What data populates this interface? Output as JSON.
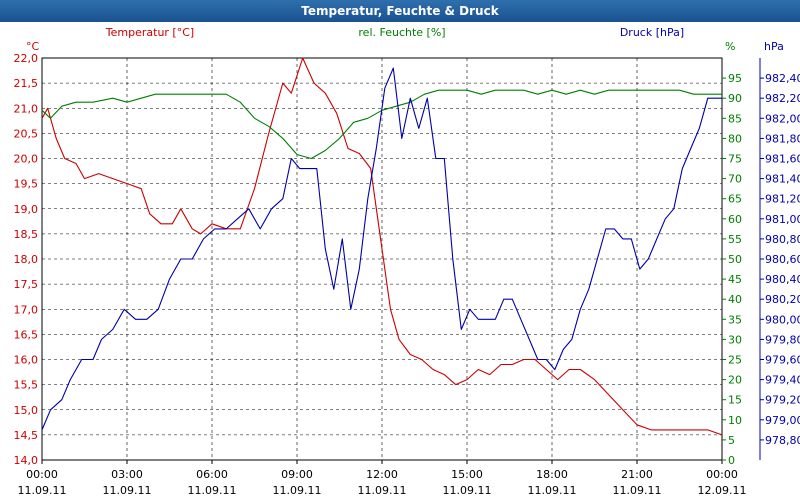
{
  "title": "Temperatur, Feuchte & Druck",
  "chart_data": {
    "type": "line",
    "title": "Temperatur, Feuchte & Druck",
    "x_ticks": [
      {
        "time": "00:00",
        "date": "11.09.11"
      },
      {
        "time": "03:00",
        "date": "11.09.11"
      },
      {
        "time": "06:00",
        "date": "11.09.11"
      },
      {
        "time": "09:00",
        "date": "11.09.11"
      },
      {
        "time": "12:00",
        "date": "11.09.11"
      },
      {
        "time": "15:00",
        "date": "11.09.11"
      },
      {
        "time": "18:00",
        "date": "11.09.11"
      },
      {
        "time": "21:00",
        "date": "11.09.11"
      },
      {
        "time": "00:00",
        "date": "12.09.11"
      }
    ],
    "xlim": [
      0,
      24
    ],
    "axes": {
      "temp": {
        "unit": "°C",
        "min": 14.0,
        "max": 22.0,
        "step": 0.5,
        "ticks": [
          "14,0",
          "14,5",
          "15,0",
          "15,5",
          "16,0",
          "16,5",
          "17,0",
          "17,5",
          "18,0",
          "18,5",
          "19,0",
          "19,5",
          "20,0",
          "20,5",
          "21,0",
          "21,5",
          "22,0"
        ]
      },
      "hum": {
        "unit": "%",
        "min": 0,
        "max": 100,
        "step": 5,
        "ticks": [
          "0",
          "5",
          "10",
          "15",
          "20",
          "25",
          "30",
          "35",
          "40",
          "45",
          "50",
          "55",
          "60",
          "65",
          "70",
          "75",
          "80",
          "85",
          "90",
          "95"
        ]
      },
      "press": {
        "unit": "hPa",
        "min": 978.6,
        "max": 982.6,
        "step": 0.2,
        "ticks": [
          "978,80",
          "979,00",
          "979,20",
          "979,40",
          "979,60",
          "979,80",
          "980,00",
          "980,20",
          "980,40",
          "980,60",
          "980,80",
          "981,00",
          "981,20",
          "981,40",
          "981,60",
          "981,80",
          "982,00",
          "982,20",
          "982,40"
        ]
      }
    },
    "series": [
      {
        "name": "Temperatur [°C]",
        "axis": "temp",
        "color": "#cc0000",
        "points": [
          [
            0,
            20.8
          ],
          [
            0.2,
            21.0
          ],
          [
            0.5,
            20.4
          ],
          [
            0.8,
            20.0
          ],
          [
            1.2,
            19.9
          ],
          [
            1.5,
            19.6
          ],
          [
            2.0,
            19.7
          ],
          [
            2.5,
            19.6
          ],
          [
            3.0,
            19.5
          ],
          [
            3.5,
            19.4
          ],
          [
            3.8,
            18.9
          ],
          [
            4.2,
            18.7
          ],
          [
            4.6,
            18.7
          ],
          [
            4.9,
            19.0
          ],
          [
            5.3,
            18.6
          ],
          [
            5.6,
            18.5
          ],
          [
            6.0,
            18.7
          ],
          [
            6.5,
            18.6
          ],
          [
            7.0,
            18.6
          ],
          [
            7.5,
            19.4
          ],
          [
            8.0,
            20.5
          ],
          [
            8.5,
            21.5
          ],
          [
            8.8,
            21.3
          ],
          [
            9.2,
            22.0
          ],
          [
            9.6,
            21.5
          ],
          [
            10.0,
            21.3
          ],
          [
            10.4,
            20.9
          ],
          [
            10.8,
            20.2
          ],
          [
            11.2,
            20.1
          ],
          [
            11.6,
            19.8
          ],
          [
            12.0,
            18.2
          ],
          [
            12.3,
            17.0
          ],
          [
            12.6,
            16.4
          ],
          [
            13.0,
            16.1
          ],
          [
            13.4,
            16.0
          ],
          [
            13.8,
            15.8
          ],
          [
            14.2,
            15.7
          ],
          [
            14.6,
            15.5
          ],
          [
            15.0,
            15.6
          ],
          [
            15.4,
            15.8
          ],
          [
            15.8,
            15.7
          ],
          [
            16.2,
            15.9
          ],
          [
            16.6,
            15.9
          ],
          [
            17.0,
            16.0
          ],
          [
            17.4,
            16.0
          ],
          [
            17.8,
            15.8
          ],
          [
            18.2,
            15.6
          ],
          [
            18.6,
            15.8
          ],
          [
            19.0,
            15.8
          ],
          [
            19.5,
            15.6
          ],
          [
            20.0,
            15.3
          ],
          [
            20.5,
            15.0
          ],
          [
            21.0,
            14.7
          ],
          [
            21.5,
            14.6
          ],
          [
            22.0,
            14.6
          ],
          [
            22.5,
            14.6
          ],
          [
            23.0,
            14.6
          ],
          [
            23.5,
            14.6
          ],
          [
            24.0,
            14.5
          ]
        ]
      },
      {
        "name": "rel. Feuchte [%]",
        "axis": "hum",
        "color": "#008000",
        "points": [
          [
            0,
            87
          ],
          [
            0.3,
            85
          ],
          [
            0.7,
            88
          ],
          [
            1.2,
            89
          ],
          [
            1.8,
            89
          ],
          [
            2.5,
            90
          ],
          [
            3.0,
            89
          ],
          [
            3.5,
            90
          ],
          [
            4.0,
            91
          ],
          [
            4.5,
            91
          ],
          [
            5.0,
            91
          ],
          [
            5.5,
            91
          ],
          [
            6.0,
            91
          ],
          [
            6.5,
            91
          ],
          [
            7.0,
            89
          ],
          [
            7.5,
            85
          ],
          [
            8.0,
            83
          ],
          [
            8.5,
            80
          ],
          [
            9.0,
            76
          ],
          [
            9.5,
            75
          ],
          [
            10.0,
            77
          ],
          [
            10.5,
            80
          ],
          [
            11.0,
            84
          ],
          [
            11.5,
            85
          ],
          [
            12.0,
            87
          ],
          [
            12.5,
            88
          ],
          [
            13.0,
            89
          ],
          [
            13.5,
            91
          ],
          [
            14.0,
            92
          ],
          [
            14.5,
            92
          ],
          [
            15.0,
            92
          ],
          [
            15.5,
            91
          ],
          [
            16.0,
            92
          ],
          [
            16.5,
            92
          ],
          [
            17.0,
            92
          ],
          [
            17.5,
            91
          ],
          [
            18.0,
            92
          ],
          [
            18.5,
            91
          ],
          [
            19.0,
            92
          ],
          [
            19.5,
            91
          ],
          [
            20.0,
            92
          ],
          [
            20.5,
            92
          ],
          [
            21.0,
            92
          ],
          [
            21.5,
            92
          ],
          [
            22.0,
            92
          ],
          [
            22.5,
            92
          ],
          [
            23.0,
            91
          ],
          [
            23.5,
            91
          ],
          [
            24.0,
            91
          ]
        ]
      },
      {
        "name": "Druck [hPa]",
        "axis": "press",
        "color": "#0000aa",
        "points": [
          [
            0,
            978.9
          ],
          [
            0.3,
            979.1
          ],
          [
            0.7,
            979.2
          ],
          [
            1.0,
            979.4
          ],
          [
            1.4,
            979.6
          ],
          [
            1.8,
            979.6
          ],
          [
            2.1,
            979.8
          ],
          [
            2.5,
            979.9
          ],
          [
            2.9,
            980.1
          ],
          [
            3.3,
            980.0
          ],
          [
            3.7,
            980.0
          ],
          [
            4.1,
            980.1
          ],
          [
            4.5,
            980.4
          ],
          [
            4.9,
            980.6
          ],
          [
            5.3,
            980.6
          ],
          [
            5.7,
            980.8
          ],
          [
            6.1,
            980.9
          ],
          [
            6.5,
            980.9
          ],
          [
            6.9,
            981.0
          ],
          [
            7.3,
            981.1
          ],
          [
            7.7,
            980.9
          ],
          [
            8.1,
            981.1
          ],
          [
            8.5,
            981.2
          ],
          [
            8.8,
            981.6
          ],
          [
            9.1,
            981.5
          ],
          [
            9.4,
            981.5
          ],
          [
            9.7,
            981.5
          ],
          [
            10.0,
            980.7
          ],
          [
            10.3,
            980.3
          ],
          [
            10.6,
            980.8
          ],
          [
            10.9,
            980.1
          ],
          [
            11.2,
            980.5
          ],
          [
            11.5,
            981.2
          ],
          [
            11.8,
            981.7
          ],
          [
            12.1,
            982.3
          ],
          [
            12.4,
            982.5
          ],
          [
            12.7,
            981.8
          ],
          [
            13.0,
            982.2
          ],
          [
            13.3,
            981.9
          ],
          [
            13.6,
            982.2
          ],
          [
            13.9,
            981.6
          ],
          [
            14.2,
            981.6
          ],
          [
            14.5,
            980.6
          ],
          [
            14.8,
            979.9
          ],
          [
            15.1,
            980.1
          ],
          [
            15.4,
            980.0
          ],
          [
            15.7,
            980.0
          ],
          [
            16.0,
            980.0
          ],
          [
            16.3,
            980.2
          ],
          [
            16.6,
            980.2
          ],
          [
            16.9,
            980.0
          ],
          [
            17.2,
            979.8
          ],
          [
            17.5,
            979.6
          ],
          [
            17.8,
            979.6
          ],
          [
            18.1,
            979.5
          ],
          [
            18.4,
            979.7
          ],
          [
            18.7,
            979.8
          ],
          [
            19.0,
            980.1
          ],
          [
            19.3,
            980.3
          ],
          [
            19.6,
            980.6
          ],
          [
            19.9,
            980.9
          ],
          [
            20.2,
            980.9
          ],
          [
            20.5,
            980.8
          ],
          [
            20.8,
            980.8
          ],
          [
            21.1,
            980.5
          ],
          [
            21.4,
            980.6
          ],
          [
            21.7,
            980.8
          ],
          [
            22.0,
            981.0
          ],
          [
            22.3,
            981.1
          ],
          [
            22.6,
            981.5
          ],
          [
            22.9,
            981.7
          ],
          [
            23.2,
            981.9
          ],
          [
            23.5,
            982.2
          ],
          [
            23.8,
            982.2
          ],
          [
            24.0,
            982.2
          ]
        ]
      }
    ],
    "legend": [
      "Temperatur [°C]",
      "rel. Feuchte [%]",
      "Druck [hPa]"
    ],
    "colors": {
      "temp": "#cc0000",
      "hum": "#008000",
      "press": "#0000aa",
      "title_bg": "#1a5290"
    },
    "grid": true
  }
}
